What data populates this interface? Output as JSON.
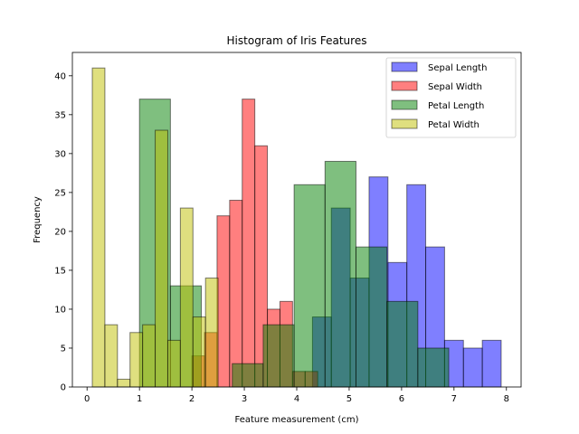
{
  "chart_data": {
    "type": "bar",
    "title": "Histogram of Iris Features",
    "xlabel": "Feature measurement (cm)",
    "ylabel": "Frequency",
    "xlim": [
      -0.28,
      8.28
    ],
    "ylim": [
      0,
      43
    ],
    "xticks": [
      "0",
      "1",
      "2",
      "3",
      "4",
      "5",
      "6",
      "7",
      "8"
    ],
    "yticks": [
      "0",
      "5",
      "10",
      "15",
      "20",
      "25",
      "30",
      "35",
      "40"
    ],
    "grid": false,
    "legend_position": "top-right",
    "series": [
      {
        "name": "Sepal Length",
        "color": "#0000ff",
        "bins": [
          {
            "x0": 4.3,
            "x1": 4.66,
            "count": 9
          },
          {
            "x0": 4.66,
            "x1": 5.02,
            "count": 23
          },
          {
            "x0": 5.02,
            "x1": 5.38,
            "count": 14
          },
          {
            "x0": 5.38,
            "x1": 5.74,
            "count": 27
          },
          {
            "x0": 5.74,
            "x1": 6.1,
            "count": 16
          },
          {
            "x0": 6.1,
            "x1": 6.46,
            "count": 26
          },
          {
            "x0": 6.46,
            "x1": 6.82,
            "count": 18
          },
          {
            "x0": 6.82,
            "x1": 7.18,
            "count": 6
          },
          {
            "x0": 7.18,
            "x1": 7.54,
            "count": 5
          },
          {
            "x0": 7.54,
            "x1": 7.9,
            "count": 6
          }
        ]
      },
      {
        "name": "Sepal Width",
        "color": "#ff0000",
        "bins": [
          {
            "x0": 2.0,
            "x1": 2.24,
            "count": 4
          },
          {
            "x0": 2.24,
            "x1": 2.48,
            "count": 7
          },
          {
            "x0": 2.48,
            "x1": 2.72,
            "count": 22
          },
          {
            "x0": 2.72,
            "x1": 2.96,
            "count": 24
          },
          {
            "x0": 2.96,
            "x1": 3.2,
            "count": 37
          },
          {
            "x0": 3.2,
            "x1": 3.44,
            "count": 31
          },
          {
            "x0": 3.44,
            "x1": 3.68,
            "count": 10
          },
          {
            "x0": 3.68,
            "x1": 3.92,
            "count": 11
          },
          {
            "x0": 3.92,
            "x1": 4.16,
            "count": 2
          },
          {
            "x0": 4.16,
            "x1": 4.4,
            "count": 2
          }
        ]
      },
      {
        "name": "Petal Length",
        "color": "#008000",
        "bins": [
          {
            "x0": 1.0,
            "x1": 1.59,
            "count": 37
          },
          {
            "x0": 1.59,
            "x1": 2.18,
            "count": 13
          },
          {
            "x0": 2.18,
            "x1": 2.77,
            "count": 0
          },
          {
            "x0": 2.77,
            "x1": 3.36,
            "count": 3
          },
          {
            "x0": 3.36,
            "x1": 3.95,
            "count": 8
          },
          {
            "x0": 3.95,
            "x1": 4.54,
            "count": 26
          },
          {
            "x0": 4.54,
            "x1": 5.13,
            "count": 29
          },
          {
            "x0": 5.13,
            "x1": 5.72,
            "count": 18
          },
          {
            "x0": 5.72,
            "x1": 6.31,
            "count": 11
          },
          {
            "x0": 6.31,
            "x1": 6.9,
            "count": 5
          }
        ]
      },
      {
        "name": "Petal Width",
        "color": "#bfbf00",
        "bins": [
          {
            "x0": 0.1,
            "x1": 0.34,
            "count": 41
          },
          {
            "x0": 0.34,
            "x1": 0.58,
            "count": 8
          },
          {
            "x0": 0.58,
            "x1": 0.82,
            "count": 1
          },
          {
            "x0": 0.82,
            "x1": 1.06,
            "count": 7
          },
          {
            "x0": 1.06,
            "x1": 1.3,
            "count": 8
          },
          {
            "x0": 1.3,
            "x1": 1.54,
            "count": 33
          },
          {
            "x0": 1.54,
            "x1": 1.78,
            "count": 6
          },
          {
            "x0": 1.78,
            "x1": 2.02,
            "count": 23
          },
          {
            "x0": 2.02,
            "x1": 2.26,
            "count": 9
          },
          {
            "x0": 2.26,
            "x1": 2.5,
            "count": 14
          }
        ]
      }
    ]
  }
}
